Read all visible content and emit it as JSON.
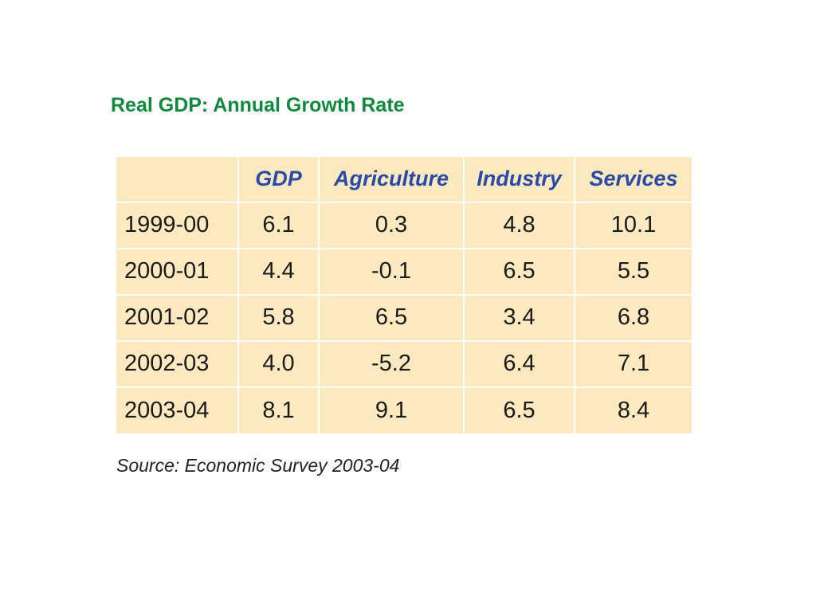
{
  "title": "Real GDP: Annual Growth Rate",
  "table": {
    "headers": [
      "",
      "GDP",
      "Agriculture",
      "Industry",
      "Services"
    ],
    "rows": [
      [
        "1999-00",
        "6.1",
        "0.3",
        "4.8",
        "10.1"
      ],
      [
        "2000-01",
        "4.4",
        "-0.1",
        "6.5",
        "5.5"
      ],
      [
        "2001-02",
        "5.8",
        "6.5",
        "3.4",
        "6.8"
      ],
      [
        "2002-03",
        "4.0",
        "-5.2",
        "6.4",
        "7.1"
      ],
      [
        "2003-04",
        "8.1",
        "9.1",
        "6.5",
        "8.4"
      ]
    ]
  },
  "source": "Source: Economic Survey 2003-04",
  "colors": {
    "title": "#0f8a3c",
    "header_text": "#2a4aa8",
    "table_background": "#fde9c0"
  }
}
